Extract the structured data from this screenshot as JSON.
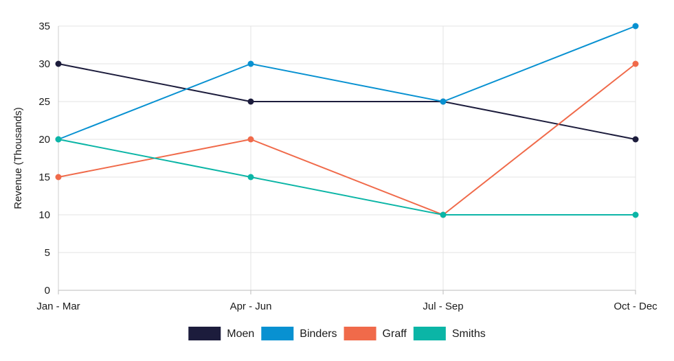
{
  "chart_data": {
    "type": "line",
    "title": "",
    "xlabel": "",
    "ylabel": "Revenue (Thousands)",
    "categories": [
      "Jan - Mar",
      "Apr - Jun",
      "Jul - Sep",
      "Oct - Dec"
    ],
    "ylim": [
      0,
      35
    ],
    "yticks": [
      0,
      5,
      10,
      15,
      20,
      25,
      30,
      35
    ],
    "grid": true,
    "legend_position": "bottom",
    "series": [
      {
        "name": "Moen",
        "color": "#1c1c3c",
        "values": [
          30,
          25,
          25,
          20
        ]
      },
      {
        "name": "Binders",
        "color": "#0891d1",
        "values": [
          20,
          30,
          25,
          35
        ]
      },
      {
        "name": "Graff",
        "color": "#f06a4a",
        "values": [
          15,
          20,
          10,
          30
        ]
      },
      {
        "name": "Smiths",
        "color": "#0bb5a6",
        "values": [
          20,
          15,
          10,
          10
        ]
      }
    ]
  }
}
